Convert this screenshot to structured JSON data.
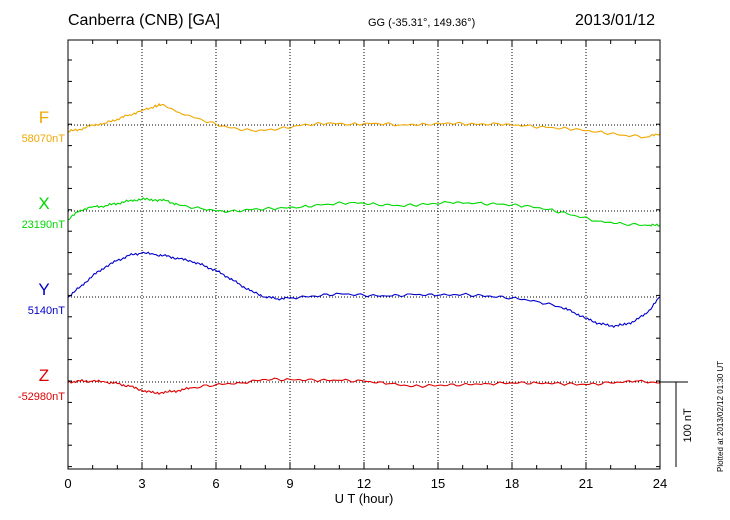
{
  "header": {
    "station": "Canberra (CNB)  [GA]",
    "coords": "GG (-35.31°, 149.36°)",
    "date": "2013/01/12"
  },
  "footer": {
    "plotted_note": "Plotted at 2013/02/12 01:30 UT"
  },
  "chart_data": {
    "type": "line",
    "xlabel": "U T (hour)",
    "xlim": [
      0,
      24
    ],
    "xticks": [
      0,
      3,
      6,
      9,
      12,
      15,
      18,
      21,
      24
    ],
    "scale_bar_label": "100 nT",
    "scale_nT": 100,
    "grid": true,
    "series": [
      {
        "name": "F",
        "baseline_label": "58070nT",
        "color": "#f0a800",
        "x": [
          0,
          0.5,
          1,
          1.5,
          2,
          2.5,
          3,
          3.5,
          3.8,
          4.5,
          5.5,
          6.5,
          7.5,
          8.5,
          9.5,
          10.5,
          11.5,
          12.5,
          13.5,
          14.5,
          15.5,
          16.5,
          17.5,
          18.5,
          19.5,
          20.5,
          21.5,
          22.5,
          23.5,
          24
        ],
        "values": [
          -8,
          -5,
          0,
          2,
          7,
          12,
          17,
          22,
          24,
          15,
          5,
          -3,
          -7,
          -5,
          0,
          2,
          1,
          2,
          0,
          1,
          2,
          1,
          1,
          -1,
          -3,
          -5,
          -8,
          -12,
          -14,
          -10
        ]
      },
      {
        "name": "X",
        "baseline_label": "23190nT",
        "color": "#00d800",
        "x": [
          0,
          0.5,
          1,
          1.5,
          2,
          2.5,
          3,
          3.5,
          4,
          4.5,
          5.5,
          6.5,
          7.5,
          8.5,
          9.5,
          10.5,
          11.5,
          12.5,
          13.5,
          14.5,
          15.5,
          16.5,
          17.5,
          18.5,
          19.5,
          20.5,
          21.5,
          22.5,
          23.5,
          24
        ],
        "values": [
          -10,
          1,
          5,
          6,
          9,
          12,
          14,
          13,
          12,
          7,
          2,
          -1,
          2,
          3,
          5,
          8,
          10,
          8,
          6,
          8,
          10,
          9,
          8,
          6,
          2,
          -5,
          -12,
          -15,
          -17,
          -17
        ]
      },
      {
        "name": "Y",
        "baseline_label": "5140nT",
        "color": "#0000cc",
        "x": [
          0,
          0.5,
          1,
          1.5,
          2,
          2.5,
          3,
          3.5,
          4,
          4.5,
          5,
          5.5,
          6,
          6.5,
          7,
          7.5,
          8,
          8.5,
          9,
          10,
          11,
          12,
          13,
          14,
          15,
          16,
          17,
          18,
          19,
          20,
          20.5,
          21,
          21.5,
          22,
          22.5,
          23,
          23.5,
          24
        ],
        "values": [
          0,
          12,
          25,
          35,
          43,
          49,
          52,
          50,
          48,
          45,
          42,
          37,
          31,
          23,
          14,
          6,
          0,
          -2,
          -1,
          1,
          4,
          2,
          1,
          3,
          2,
          3,
          1,
          -1,
          -5,
          -12,
          -18,
          -25,
          -31,
          -34,
          -33,
          -28,
          -18,
          0
        ]
      },
      {
        "name": "Z",
        "baseline_label": "-52980nT",
        "color": "#dd0000",
        "x": [
          0,
          0.5,
          1,
          1.5,
          2,
          2.5,
          3,
          3.5,
          4,
          4.5,
          5,
          6,
          7,
          8,
          9,
          10,
          11,
          12,
          13,
          14,
          15,
          16,
          17,
          18,
          19,
          20,
          21,
          22,
          23,
          24
        ],
        "values": [
          0,
          1,
          1,
          0,
          -2,
          -5,
          -10,
          -13,
          -12,
          -10,
          -7,
          -3,
          -1,
          3,
          3,
          2,
          2,
          1,
          -2,
          -5,
          -4,
          -3,
          -2,
          -1,
          -1,
          -2,
          -3,
          -1,
          1,
          -1
        ]
      }
    ]
  }
}
